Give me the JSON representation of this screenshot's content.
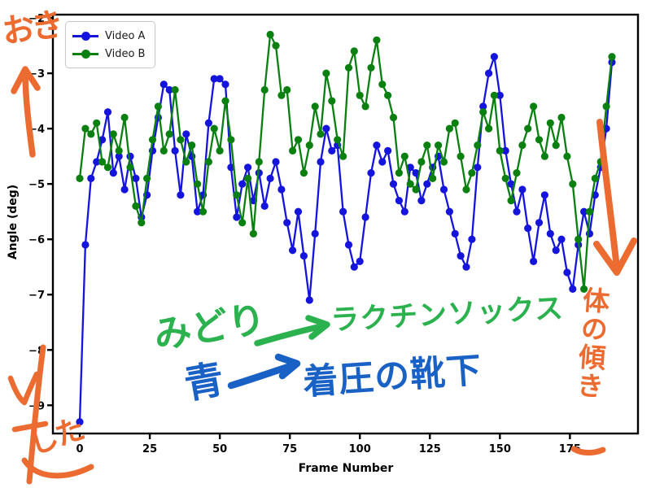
{
  "chart_data": {
    "type": "line",
    "title": "",
    "xlabel": "Frame Number",
    "ylabel": "Angle (deg)",
    "x_ticks": [
      0,
      25,
      50,
      75,
      100,
      125,
      150,
      175
    ],
    "y_ticks": [
      -2,
      -3,
      -4,
      -5,
      -6,
      -7,
      -8,
      -9
    ],
    "xlim": [
      -9.6,
      199.3
    ],
    "ylim": [
      -9.51,
      -1.94
    ],
    "grid": false,
    "legend_position": "upper left",
    "marker": "circle",
    "x": [
      0,
      2,
      4,
      6,
      8,
      10,
      12,
      14,
      16,
      18,
      20,
      22,
      24,
      26,
      28,
      30,
      32,
      34,
      36,
      38,
      40,
      42,
      44,
      46,
      48,
      50,
      52,
      54,
      56,
      58,
      60,
      62,
      64,
      66,
      68,
      70,
      72,
      74,
      76,
      78,
      80,
      82,
      84,
      86,
      88,
      90,
      92,
      94,
      96,
      98,
      100,
      102,
      104,
      106,
      108,
      110,
      112,
      114,
      116,
      118,
      120,
      122,
      124,
      126,
      128,
      130,
      132,
      134,
      136,
      138,
      140,
      142,
      144,
      146,
      148,
      150,
      152,
      154,
      156,
      158,
      160,
      162,
      164,
      166,
      168,
      170,
      172,
      174,
      176,
      178,
      180,
      182,
      184,
      186,
      188,
      190
    ],
    "series": [
      {
        "name": "Video A",
        "color": "#1414dd",
        "values": [
          -9.3,
          -6.1,
          -4.9,
          -4.6,
          -4.2,
          -3.7,
          -4.8,
          -4.5,
          -5.1,
          -4.5,
          -4.9,
          -5.6,
          -5.2,
          -4.4,
          -3.8,
          -3.2,
          -3.3,
          -4.4,
          -5.2,
          -4.1,
          -4.5,
          -5.5,
          -5.2,
          -3.9,
          -3.1,
          -3.1,
          -3.2,
          -4.7,
          -5.6,
          -5.0,
          -4.7,
          -5.3,
          -4.8,
          -5.4,
          -4.9,
          -4.6,
          -5.1,
          -5.7,
          -6.2,
          -5.5,
          -6.3,
          -7.1,
          -5.9,
          -4.6,
          -4.0,
          -4.4,
          -4.3,
          -5.5,
          -6.1,
          -6.5,
          -6.4,
          -5.6,
          -4.8,
          -4.3,
          -4.6,
          -4.4,
          -5.0,
          -5.3,
          -5.5,
          -4.7,
          -4.8,
          -5.3,
          -5.0,
          -4.7,
          -4.5,
          -5.1,
          -5.5,
          -5.9,
          -6.3,
          -6.5,
          -6.0,
          -4.7,
          -3.6,
          -3.0,
          -2.7,
          -3.4,
          -4.4,
          -5.0,
          -5.5,
          -5.1,
          -5.8,
          -6.4,
          -5.7,
          -5.2,
          -5.9,
          -6.2,
          -6.0,
          -6.6,
          -6.9,
          -6.1,
          -5.5,
          -5.9,
          -5.2,
          -4.7,
          -4.0,
          -2.8
        ]
      },
      {
        "name": "Video B",
        "color": "#0a8010",
        "values": [
          -4.9,
          -4.0,
          -4.1,
          -3.9,
          -4.6,
          -4.7,
          -4.1,
          -4.4,
          -3.8,
          -4.7,
          -5.4,
          -5.7,
          -4.9,
          -4.2,
          -3.6,
          -4.4,
          -4.1,
          -3.3,
          -4.2,
          -4.6,
          -4.3,
          -5.0,
          -5.5,
          -4.6,
          -4.0,
          -4.4,
          -3.5,
          -4.2,
          -5.2,
          -5.7,
          -4.9,
          -5.9,
          -4.6,
          -3.3,
          -2.3,
          -2.5,
          -3.4,
          -3.3,
          -4.4,
          -4.2,
          -4.8,
          -4.3,
          -3.6,
          -4.1,
          -3.0,
          -3.5,
          -4.2,
          -4.5,
          -2.9,
          -2.6,
          -3.4,
          -3.6,
          -2.9,
          -2.4,
          -3.2,
          -3.4,
          -3.8,
          -4.8,
          -4.5,
          -5.0,
          -5.1,
          -4.6,
          -4.3,
          -4.9,
          -4.3,
          -4.6,
          -4.0,
          -3.9,
          -4.5,
          -5.1,
          -4.8,
          -4.3,
          -3.7,
          -4.0,
          -3.4,
          -4.4,
          -4.9,
          -5.3,
          -4.8,
          -4.3,
          -4.0,
          -3.6,
          -4.2,
          -4.5,
          -3.9,
          -4.3,
          -3.8,
          -4.5,
          -5.0,
          -6.0,
          -6.9,
          -5.5,
          -4.9,
          -4.6,
          -3.6,
          -2.7
        ]
      }
    ]
  },
  "axes": {
    "xlabel": "Frame Number",
    "ylabel": "Angle (deg)"
  },
  "legend": {
    "items": [
      {
        "label": "Video A",
        "color": "#1414dd"
      },
      {
        "label": "Video B",
        "color": "#0a8010"
      }
    ]
  },
  "annotations": {
    "orange_color": "#ec6b30",
    "top_left_text": "おき",
    "bottom_left_text": "した",
    "right_vertical_text": "体の傾き",
    "green_note": {
      "color": "#2bb14e",
      "text": "みどり",
      "points_to": "ラクチンソックス"
    },
    "blue_note": {
      "color": "#1a61c6",
      "text": "青",
      "points_to": "着圧の靴下"
    }
  }
}
